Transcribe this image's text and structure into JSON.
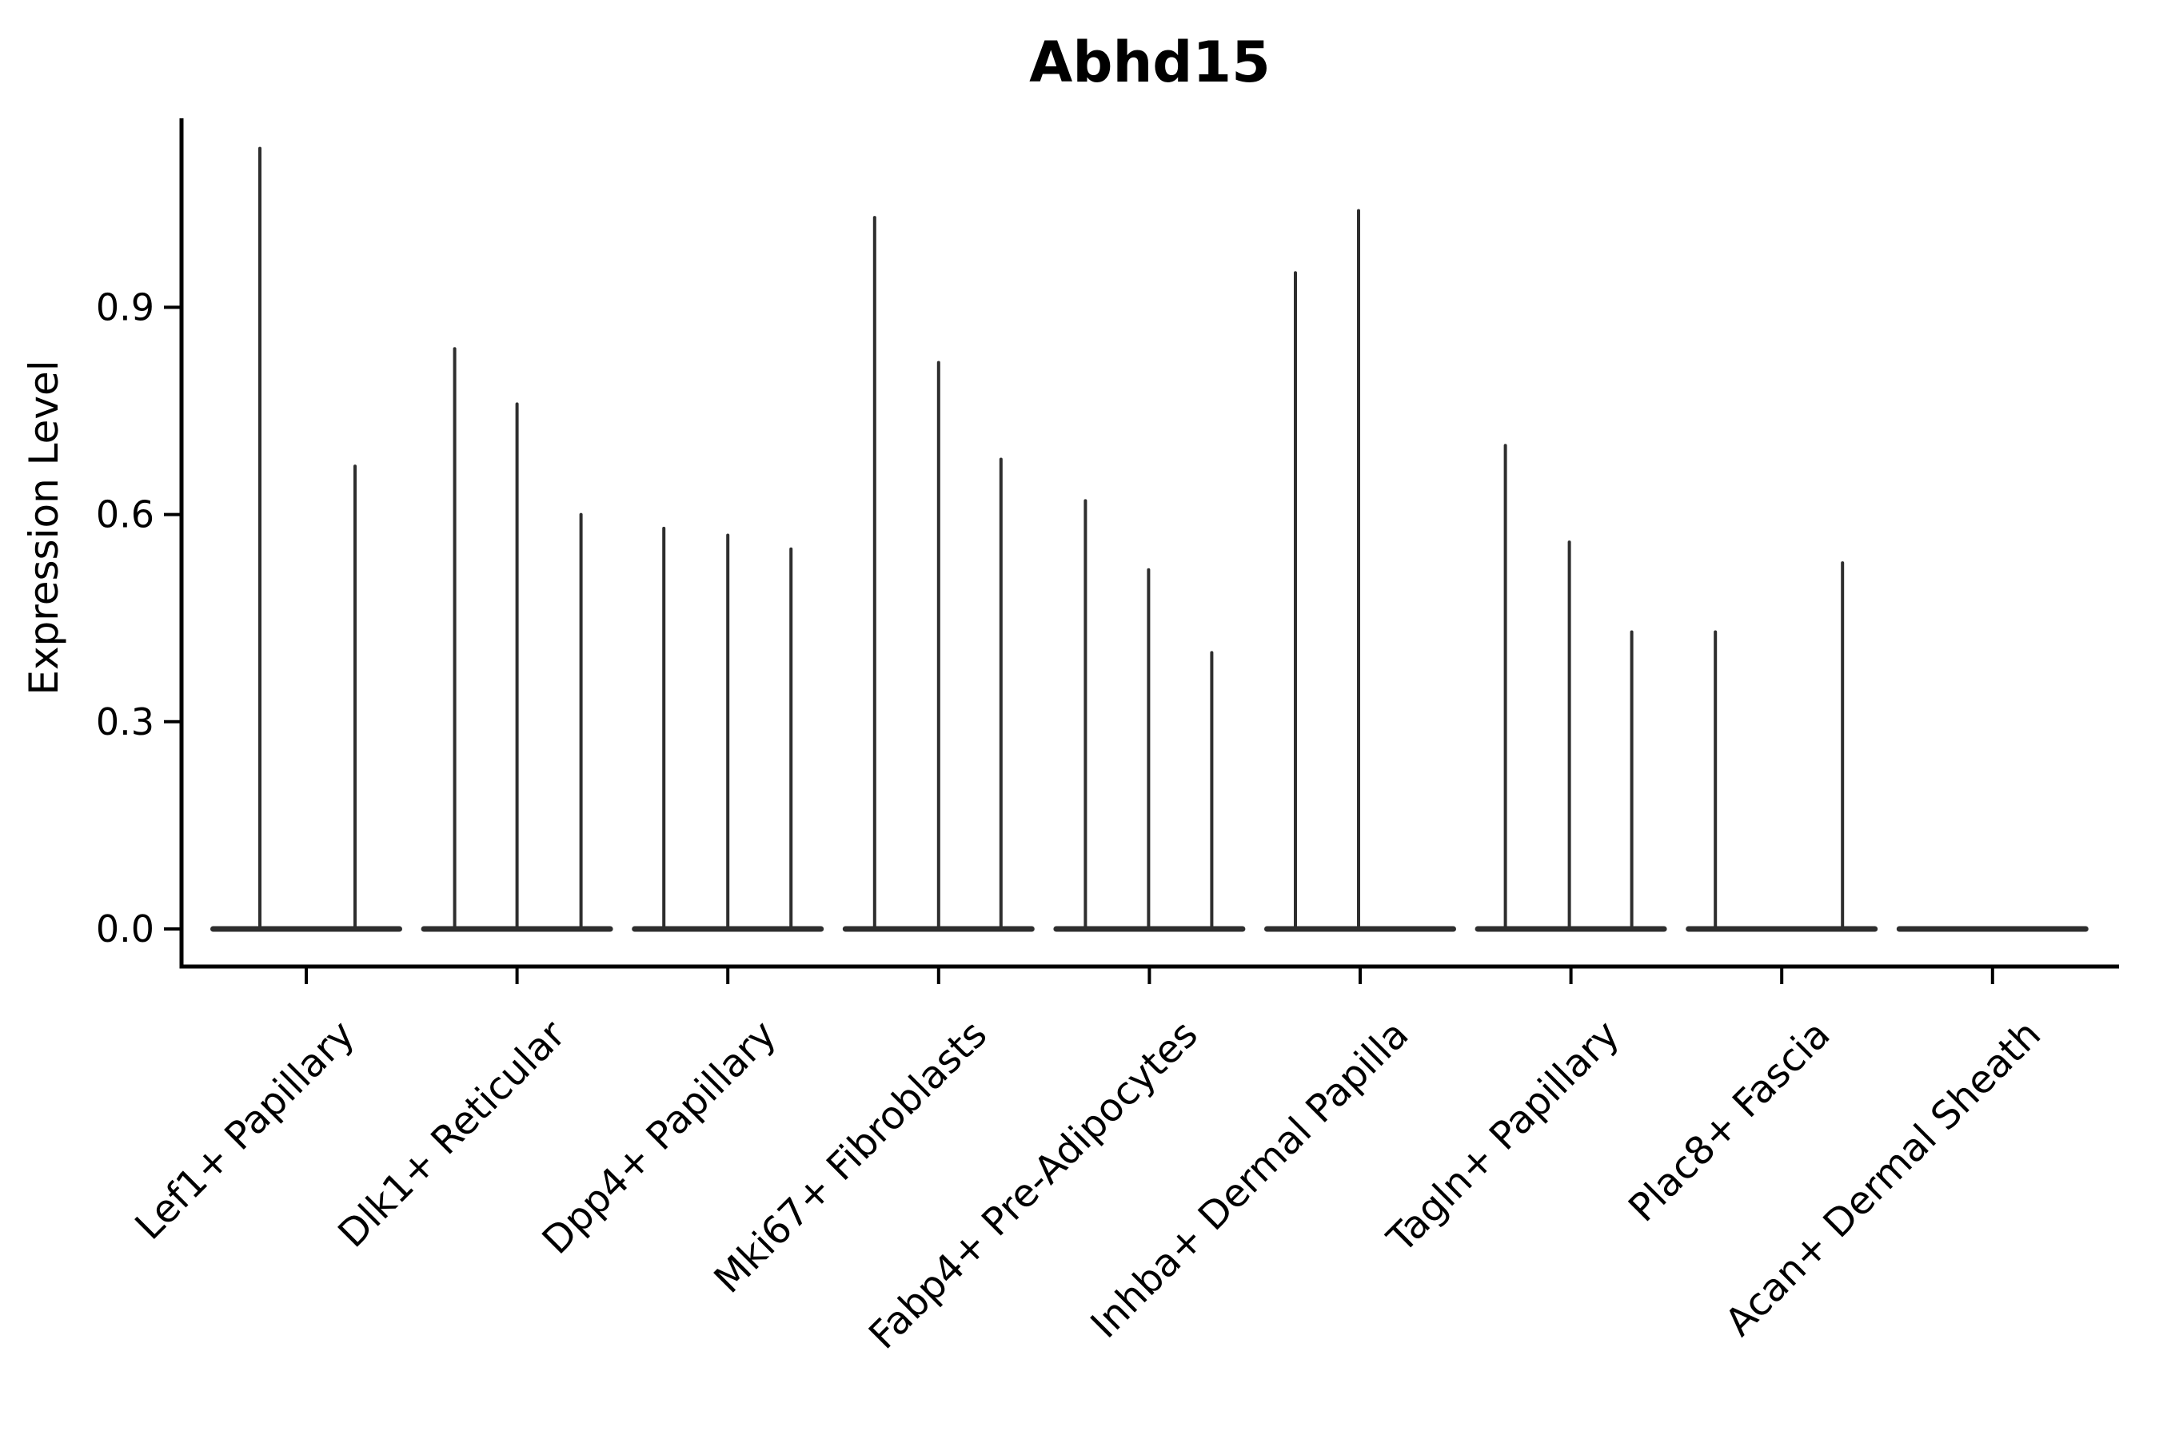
{
  "chart_data": {
    "type": "violin",
    "title": "Abhd15",
    "ylabel": "Expression Level",
    "xlabel": "",
    "grid": false,
    "legend": "none",
    "ylim": [
      0,
      1.17
    ],
    "y_ticks": [
      {
        "label": "0.0",
        "value": 0.0
      },
      {
        "label": "0.3",
        "value": 0.3
      },
      {
        "label": "0.6",
        "value": 0.6
      },
      {
        "label": "0.9",
        "value": 0.9
      }
    ],
    "description": "Violin plot of single-gene expression; each cell-type category shows a flat zero-density body with thin vertical density spikes at expressed values.",
    "categories": [
      {
        "label": "Lef1+ Papillary",
        "spikes": [
          {
            "offset": -58,
            "value": 1.13
          },
          {
            "offset": 61,
            "value": 0.67
          }
        ]
      },
      {
        "label": "Dlk1+ Reticular",
        "spikes": [
          {
            "offset": -78,
            "value": 0.84
          },
          {
            "offset": 0,
            "value": 0.76
          },
          {
            "offset": 80,
            "value": 0.6
          }
        ]
      },
      {
        "label": "Dpp4+ Papillary",
        "spikes": [
          {
            "offset": -80,
            "value": 0.58
          },
          {
            "offset": 0,
            "value": 0.57
          },
          {
            "offset": 79,
            "value": 0.55
          }
        ]
      },
      {
        "label": "Mki67+ Fibroblasts",
        "spikes": [
          {
            "offset": -80,
            "value": 1.03
          },
          {
            "offset": 0,
            "value": 0.82
          },
          {
            "offset": 78,
            "value": 0.68
          }
        ]
      },
      {
        "label": "Fabp4+ Pre-Adipocytes",
        "spikes": [
          {
            "offset": -80,
            "value": 0.62
          },
          {
            "offset": -1,
            "value": 0.52
          },
          {
            "offset": 78,
            "value": 0.4
          }
        ]
      },
      {
        "label": "Inhba+ Dermal Papilla",
        "spikes": [
          {
            "offset": -81,
            "value": 0.95
          },
          {
            "offset": -2,
            "value": 1.04
          }
        ]
      },
      {
        "label": "Tagln+ Papillary",
        "spikes": [
          {
            "offset": -82,
            "value": 0.7
          },
          {
            "offset": -2,
            "value": 0.56
          },
          {
            "offset": 76,
            "value": 0.43
          }
        ]
      },
      {
        "label": "Plac8+ Fascia",
        "spikes": [
          {
            "offset": -83,
            "value": 0.43
          },
          {
            "offset": 76,
            "value": 0.53
          }
        ]
      },
      {
        "label": "Acan+ Dermal Sheath",
        "spikes": []
      }
    ],
    "colors": {
      "violin_ink": "#2e2e2e",
      "axis_ink": "#000000",
      "text_ink": "#000000",
      "background": "#ffffff"
    }
  }
}
